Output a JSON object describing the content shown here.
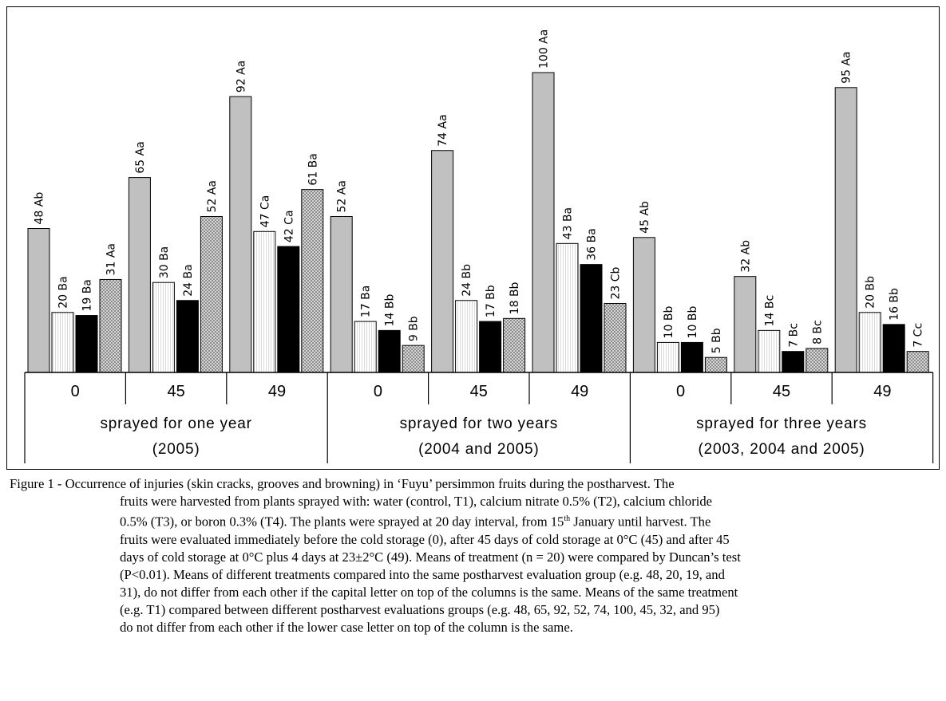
{
  "chart_data": {
    "type": "bar",
    "series": [
      {
        "name": "water (control)",
        "values": [
          48,
          65,
          92,
          52,
          74,
          100,
          45,
          32,
          95
        ],
        "labels": [
          "48 Ab",
          "65 Aa",
          "92 Aa",
          "52 Aa",
          "74 Aa",
          "100 Aa",
          "45 Ab",
          "32 Ab",
          "95 Aa"
        ],
        "pattern": "gray"
      },
      {
        "name": "calcium nitrate",
        "values": [
          20,
          30,
          47,
          17,
          24,
          43,
          10,
          14,
          20
        ],
        "labels": [
          "20 Ba",
          "30 Ba",
          "47 Ca",
          "17 Ba",
          "24 Bb",
          "43 Ba",
          "10 Bb",
          "14 Bc",
          "20 Bb"
        ],
        "pattern": "white"
      },
      {
        "name": "calcium chloride",
        "values": [
          19,
          24,
          42,
          14,
          17,
          36,
          10,
          7,
          16
        ],
        "labels": [
          "19 Ba",
          "24 Ba",
          "42 Ca",
          "14 Bb",
          "17 Bb",
          "36 Ba",
          "10 Bb",
          "7 Bc",
          "16 Bb"
        ],
        "pattern": "black"
      },
      {
        "name": "boron",
        "values": [
          31,
          52,
          61,
          9,
          18,
          23,
          5,
          8,
          7
        ],
        "labels": [
          "31 Aa",
          "52 Aa",
          "61 Ba",
          "9 Bb",
          "18 Bb",
          "23 Cb",
          "5 Bb",
          "8 Bc",
          "7 Cc"
        ],
        "pattern": "hatched"
      }
    ],
    "categories": [
      "0",
      "45",
      "49",
      "0",
      "45",
      "49",
      "0",
      "45",
      "49"
    ],
    "groups": [
      {
        "line1": "sprayed for one year",
        "line2": "(2005)"
      },
      {
        "line1": "sprayed for two years",
        "line2": "(2004 and 2005)"
      },
      {
        "line1": "sprayed for three years",
        "line2": "(2003, 2004 and 2005)"
      }
    ],
    "ylim": [
      0,
      100
    ],
    "grid": false,
    "legend": "bottom",
    "colors": {
      "water": "#c0c0c0",
      "nitrate": "#ffffff",
      "chloride": "#000000",
      "boron": "#9a9a9a"
    }
  },
  "caption": {
    "label": "Figure 1 - ",
    "lines": [
      "Occurrence of injuries (skin cracks, grooves and browning) in ‘Fuyu’ persimmon fruits during the postharvest. The",
      "fruits were harvested from plants sprayed with: water (control, T1), calcium nitrate 0.5% (T2), calcium chloride",
      "0.5% (T3), or boron 0.3% (T4). The plants were sprayed at 20 day interval, from 15th January until harvest. The",
      "fruits were evaluated immediately before the cold storage (0), after 45 days of cold storage at 0°C (45) and after 45",
      "days of cold storage at 0°C plus 4 days at 23±2°C (49). Means of treatment (n = 20) were compared by Duncan’s test",
      "(P<0.01). Means of different treatments compared into the same postharvest evaluation group (e.g. 48, 20, 19, and",
      "31), do not differ from each other if the capital letter on top of the columns is the same. Means of the same treatment",
      "(e.g. T1) compared between different postharvest evaluations groups (e.g. 48, 65, 92, 52, 74, 100, 45, 32, and 95)",
      "do not differ from each other if the lower case letter on top of the column is the same."
    ]
  }
}
